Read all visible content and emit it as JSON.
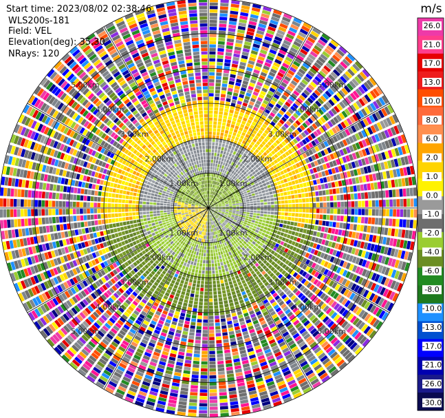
{
  "header": {
    "start_time": "Start time: 2023/08/02 02:38:46",
    "instrument": "WLS200s-181",
    "field": "Field: VEL",
    "elevation": "Elevation(deg): 35.30",
    "nrays": "NRays: 120"
  },
  "colorbar": {
    "unit": "m/s",
    "ticks": [
      "26.0",
      "21.0",
      "17.0",
      "13.0",
      "10.0",
      "8.0",
      "6.0",
      "2.0",
      "1.0",
      "0.0",
      "-1.0",
      "-2.0",
      "-4.0",
      "-6.0",
      "-8.0",
      "-10.0",
      "-13.0",
      "-17.0",
      "-21.0",
      "-26.0",
      "-30.0"
    ],
    "colors": [
      "#ee3aa8",
      "#ff3d8b",
      "#e60000",
      "#ee1c1c",
      "#ff4d00",
      "#ff6a3a",
      "#ff8f4f",
      "#ffa500",
      "#ffd400",
      "#fff200",
      "#9a9a9a",
      "#6e6e6e",
      "#9acd32",
      "#6b8e23",
      "#228b22",
      "#1e7a1e",
      "#1e90ff",
      "#0050d0",
      "#0000ff",
      "#0000b0",
      "#1a1a8a",
      "#0a0a50"
    ]
  },
  "chart_data": {
    "type": "heatmap",
    "subtype": "PPI polar radial-velocity scan",
    "field": "VEL",
    "units": "m/s",
    "n_rays": 120,
    "range_rings_km": [
      1.0,
      2.0,
      3.0,
      4.0,
      5.0
    ],
    "range_labels": [
      "1.00km",
      "2.00km",
      "3.00km",
      "4.00km",
      "5.00km"
    ],
    "max_range_km": 6.0,
    "spokes_deg": [
      0,
      30,
      60,
      90,
      120,
      150,
      180,
      210,
      240,
      270,
      300,
      330
    ],
    "summary_by_range": [
      {
        "range_km": [
          0.0,
          1.0
        ],
        "north_half": "0 to -2 m/s (green/gray)",
        "south_half": "0 to 2 m/s, yellow on west side"
      },
      {
        "range_km": [
          1.0,
          2.0
        ],
        "north_half": "0.0 to -1.0 m/s (gray)",
        "south_half": "-2.0 to -4.0 m/s (green)"
      },
      {
        "range_km": [
          2.0,
          3.0
        ],
        "north_half": "1.0 to 2.0 m/s (yellow)",
        "south_half": "-2.0 to -4.0 m/s (olive green)"
      },
      {
        "range_km": [
          3.0,
          6.0
        ],
        "all": "noisy, values spanning -30 to 26 m/s"
      }
    ]
  }
}
